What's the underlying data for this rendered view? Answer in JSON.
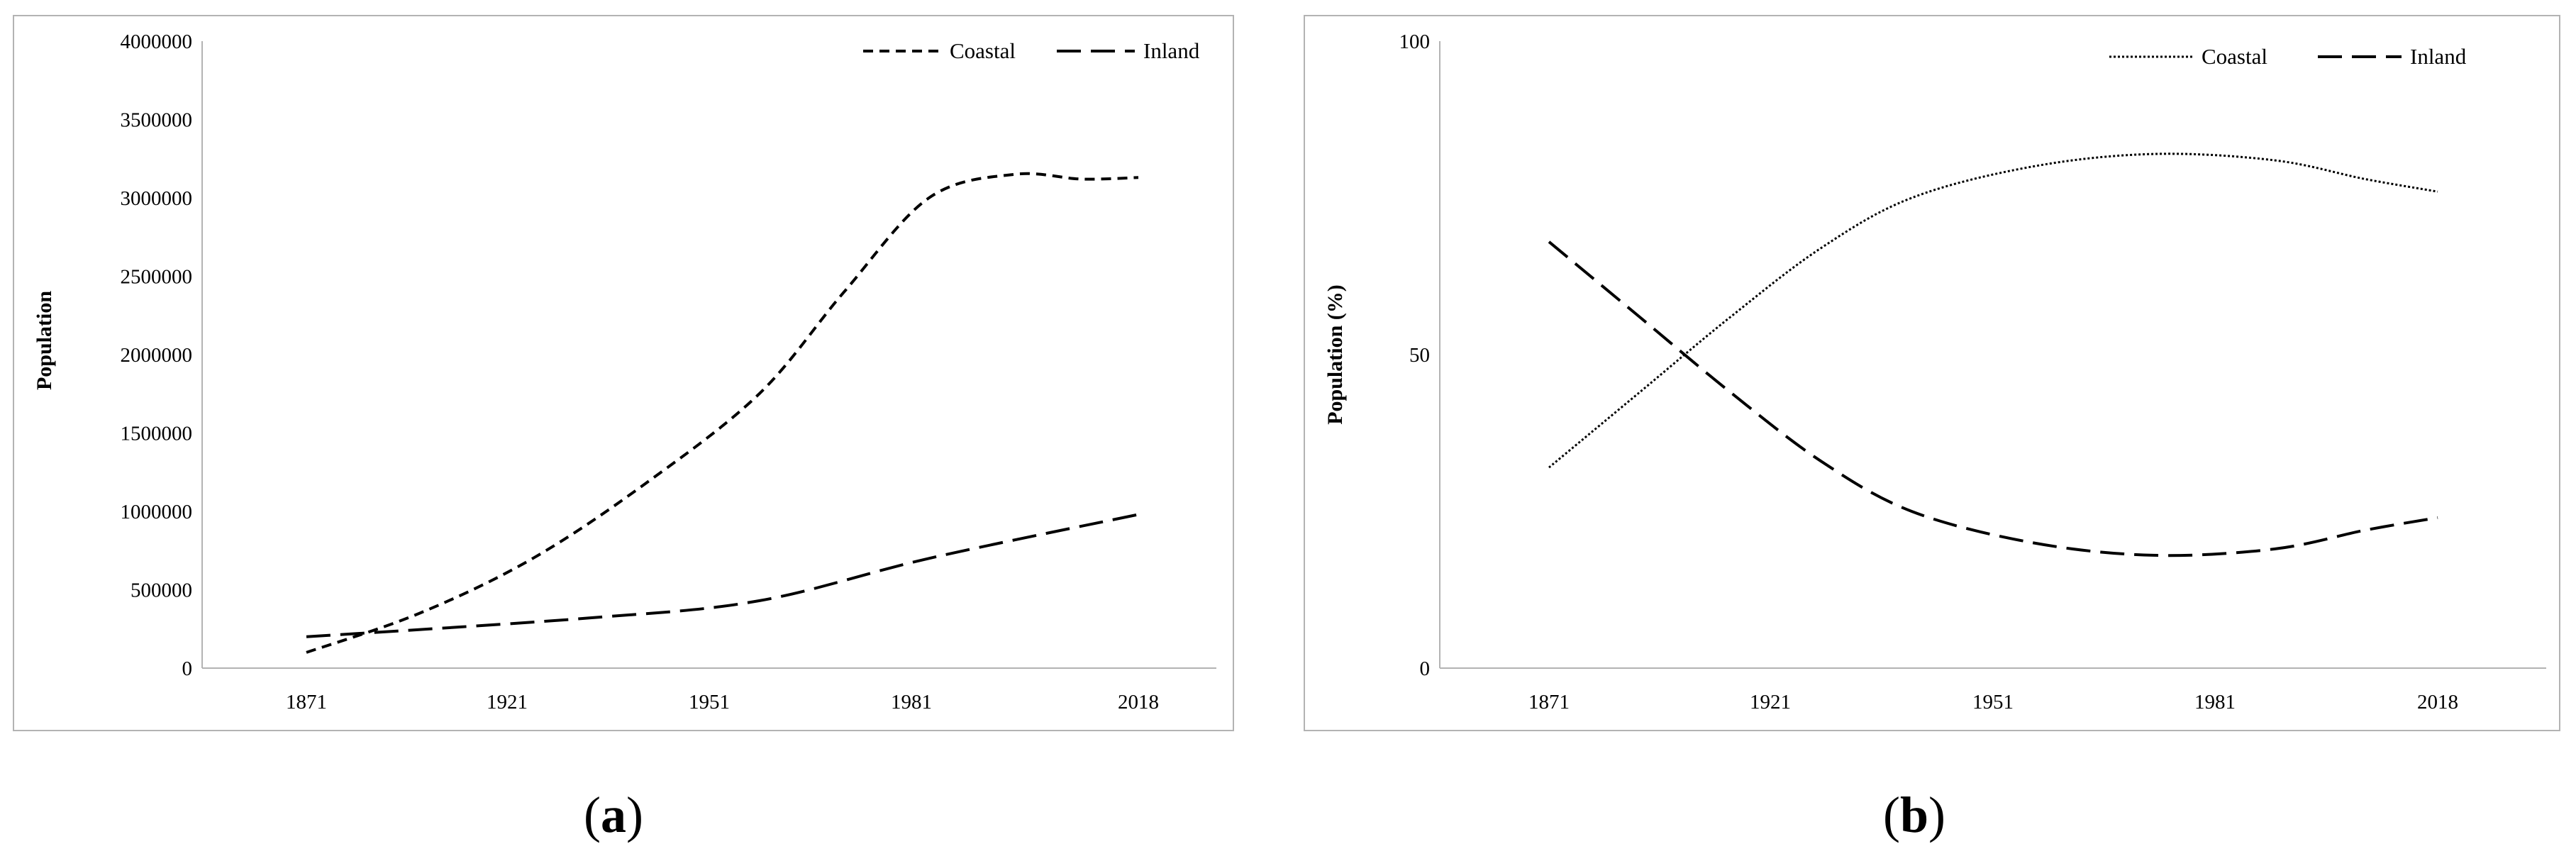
{
  "chart_data": [
    {
      "type": "line",
      "panel_label": "a",
      "title": "",
      "xlabel": "",
      "ylabel": "Population",
      "categories": [
        "1871",
        "1921",
        "1951",
        "1981",
        "2018"
      ],
      "xlim": [
        1871,
        2018
      ],
      "ylim": [
        0,
        4000000
      ],
      "yticks": [
        "0",
        "500000",
        "1000000",
        "1500000",
        "2000000",
        "2500000",
        "3000000",
        "3500000",
        "4000000"
      ],
      "legend": "top-right",
      "grid": false,
      "series": [
        {
          "name": "Coastal",
          "style": "short-dash",
          "x": [
            1871,
            1891,
            1911,
            1931,
            1951,
            1966,
            1981,
            1996,
            2008,
            2018
          ],
          "y": [
            100000,
            350000,
            700000,
            1180000,
            1750000,
            2400000,
            3000000,
            3150000,
            3120000,
            3130000
          ]
        },
        {
          "name": "Inland",
          "style": "long-dash",
          "x": [
            1871,
            1921,
            1951,
            1981,
            2018
          ],
          "y": [
            200000,
            320000,
            430000,
            700000,
            980000
          ]
        }
      ]
    },
    {
      "type": "line",
      "panel_label": "b",
      "title": "",
      "xlabel": "",
      "ylabel": "Population (%)",
      "categories": [
        "1871",
        "1921",
        "1951",
        "1981",
        "2018"
      ],
      "xlim": [
        1871,
        2018
      ],
      "ylim": [
        0,
        100
      ],
      "yticks": [
        "0",
        "50",
        "100"
      ],
      "legend": "top-right",
      "grid": false,
      "series": [
        {
          "name": "Coastal",
          "style": "dotted",
          "x": [
            1871,
            1886,
            1901,
            1916,
            1931,
            1951,
            1971,
            1991,
            2006,
            2018
          ],
          "y": [
            32,
            44,
            56,
            67,
            75,
            80,
            82,
            81,
            78,
            76
          ]
        },
        {
          "name": "Inland",
          "style": "long-dash",
          "x": [
            1871,
            1886,
            1901,
            1916,
            1931,
            1951,
            1971,
            1991,
            2006,
            2018
          ],
          "y": [
            68,
            56,
            44,
            33,
            25,
            20,
            18,
            19,
            22,
            24
          ]
        }
      ]
    }
  ]
}
